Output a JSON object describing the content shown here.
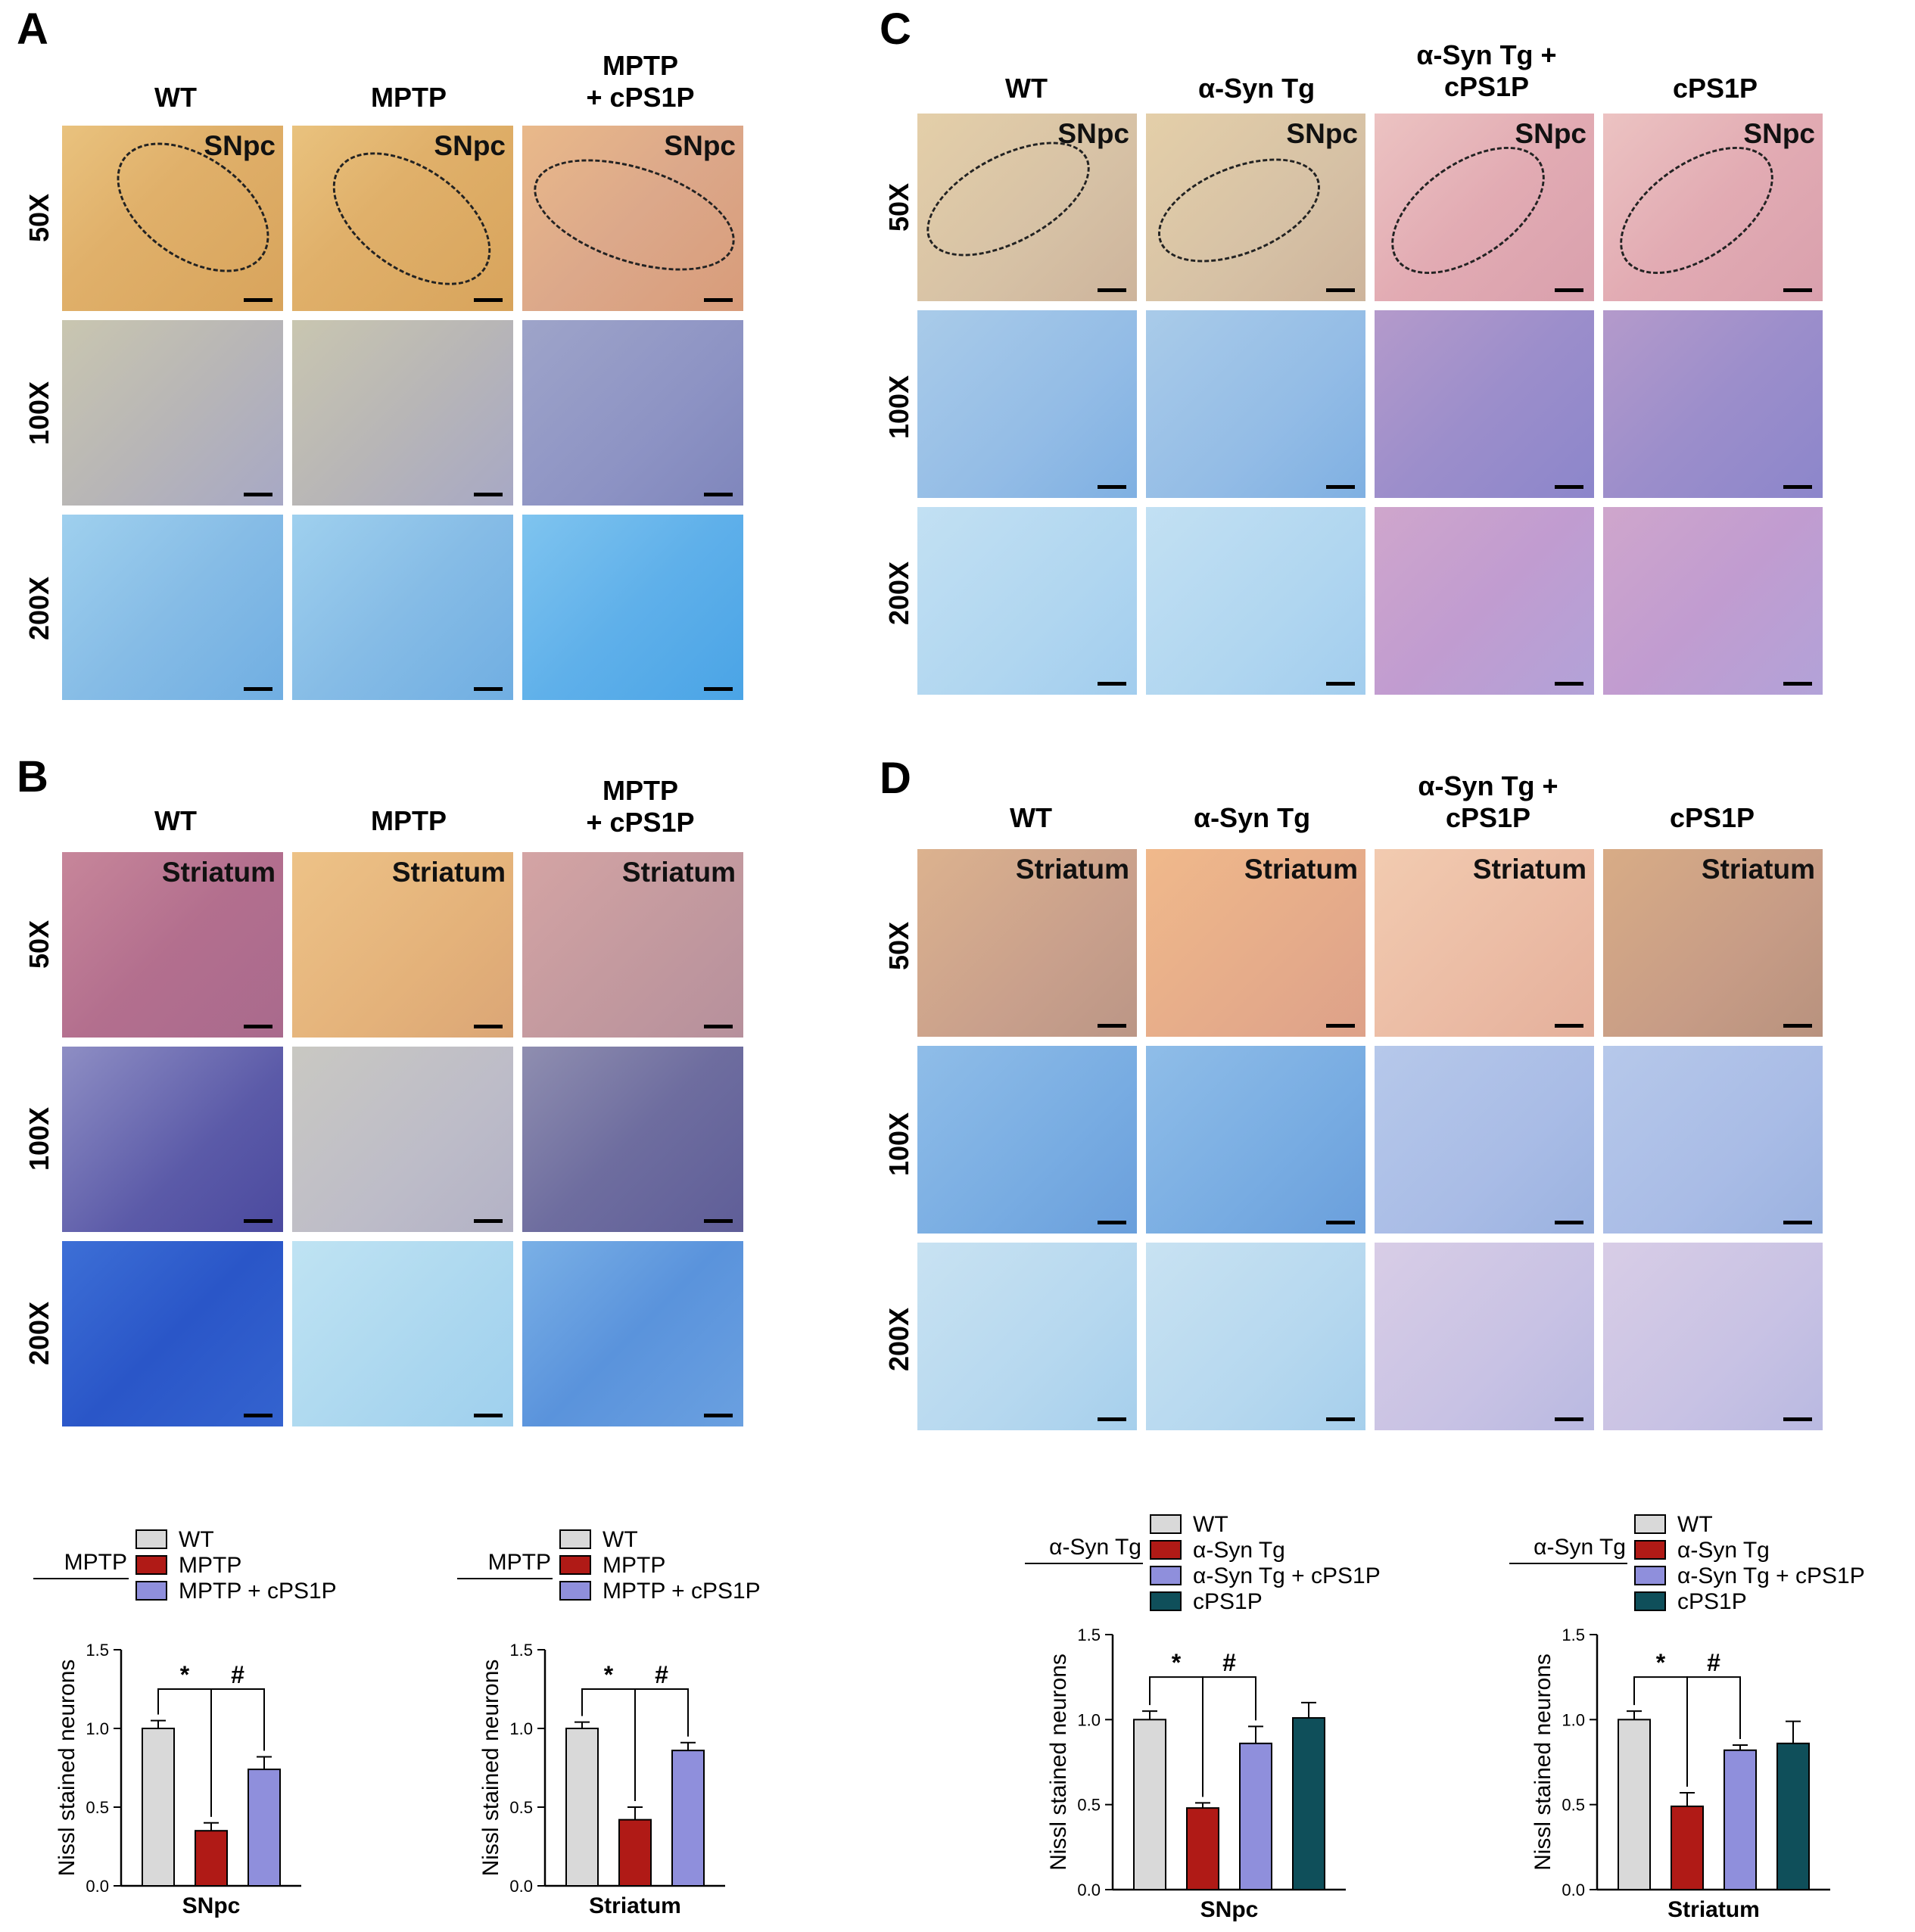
{
  "panels": {
    "A": {
      "letter": "A",
      "columns": [
        "WT",
        "MPTP",
        "MPTP\n+ cPS1P"
      ],
      "rows": [
        "50X",
        "100X",
        "200X"
      ],
      "region": "SNpc"
    },
    "B": {
      "letter": "B",
      "columns": [
        "WT",
        "MPTP",
        "MPTP\n+ cPS1P"
      ],
      "rows": [
        "50X",
        "100X",
        "200X"
      ],
      "region": "Striatum"
    },
    "C": {
      "letter": "C",
      "columns": [
        "WT",
        "α-Syn Tg",
        "α-Syn Tg +\ncPS1P",
        "cPS1P"
      ],
      "rows": [
        "50X",
        "100X",
        "200X"
      ],
      "region": "SNpc"
    },
    "D": {
      "letter": "D",
      "columns": [
        "WT",
        "α-Syn Tg",
        "α-Syn Tg +\ncPS1P",
        "cPS1P"
      ],
      "rows": [
        "50X",
        "100X",
        "200X"
      ],
      "region": "Striatum"
    }
  },
  "colors": {
    "wt": "#d9d9d9",
    "mptp": "#b01a16",
    "cps1p_combo": "#8f8fdc",
    "cps1p": "#0f4f5a"
  },
  "chart_data": [
    {
      "type": "bar",
      "group_label": "MPTP",
      "legend": [
        "WT",
        "MPTP",
        "MPTP + cPS1P"
      ],
      "categories": [
        "WT",
        "MPTP",
        "MPTP + cPS1P"
      ],
      "values": [
        1.0,
        0.35,
        0.74
      ],
      "errors": [
        0.05,
        0.05,
        0.08
      ],
      "ylabel": "Nissl stained neurons",
      "xlabel": "SNpc",
      "ylim": [
        0,
        1.5
      ],
      "yticks": [
        "0.0",
        "0.5",
        "1.0",
        "1.5"
      ],
      "annotations": [
        "*",
        "#"
      ]
    },
    {
      "type": "bar",
      "group_label": "MPTP",
      "legend": [
        "WT",
        "MPTP",
        "MPTP + cPS1P"
      ],
      "categories": [
        "WT",
        "MPTP",
        "MPTP + cPS1P"
      ],
      "values": [
        1.0,
        0.42,
        0.86
      ],
      "errors": [
        0.04,
        0.08,
        0.05
      ],
      "ylabel": "Nissl stained neurons",
      "xlabel": "Striatum",
      "ylim": [
        0,
        1.5
      ],
      "yticks": [
        "0.0",
        "0.5",
        "1.0",
        "1.5"
      ],
      "annotations": [
        "*",
        "#"
      ]
    },
    {
      "type": "bar",
      "group_label": "α-Syn Tg",
      "legend": [
        "WT",
        "α-Syn Tg",
        "α-Syn Tg + cPS1P",
        "cPS1P"
      ],
      "categories": [
        "WT",
        "α-Syn Tg",
        "α-Syn Tg + cPS1P",
        "cPS1P"
      ],
      "values": [
        1.0,
        0.48,
        0.86,
        1.01
      ],
      "errors": [
        0.05,
        0.03,
        0.1,
        0.09
      ],
      "ylabel": "Nissl stained neurons",
      "xlabel": "SNpc",
      "ylim": [
        0,
        1.5
      ],
      "yticks": [
        "0.0",
        "0.5",
        "1.0",
        "1.5"
      ],
      "annotations": [
        "*",
        "#"
      ]
    },
    {
      "type": "bar",
      "group_label": "α-Syn Tg",
      "legend": [
        "WT",
        "α-Syn Tg",
        "α-Syn Tg + cPS1P",
        "cPS1P"
      ],
      "categories": [
        "WT",
        "α-Syn Tg",
        "α-Syn Tg + cPS1P",
        "cPS1P"
      ],
      "values": [
        1.0,
        0.49,
        0.82,
        0.86
      ],
      "errors": [
        0.05,
        0.08,
        0.03,
        0.13
      ],
      "ylabel": "Nissl stained neurons",
      "xlabel": "Striatum",
      "ylim": [
        0,
        1.5
      ],
      "yticks": [
        "0.0",
        "0.5",
        "1.0",
        "1.5"
      ],
      "annotations": [
        "*",
        "#"
      ]
    }
  ]
}
